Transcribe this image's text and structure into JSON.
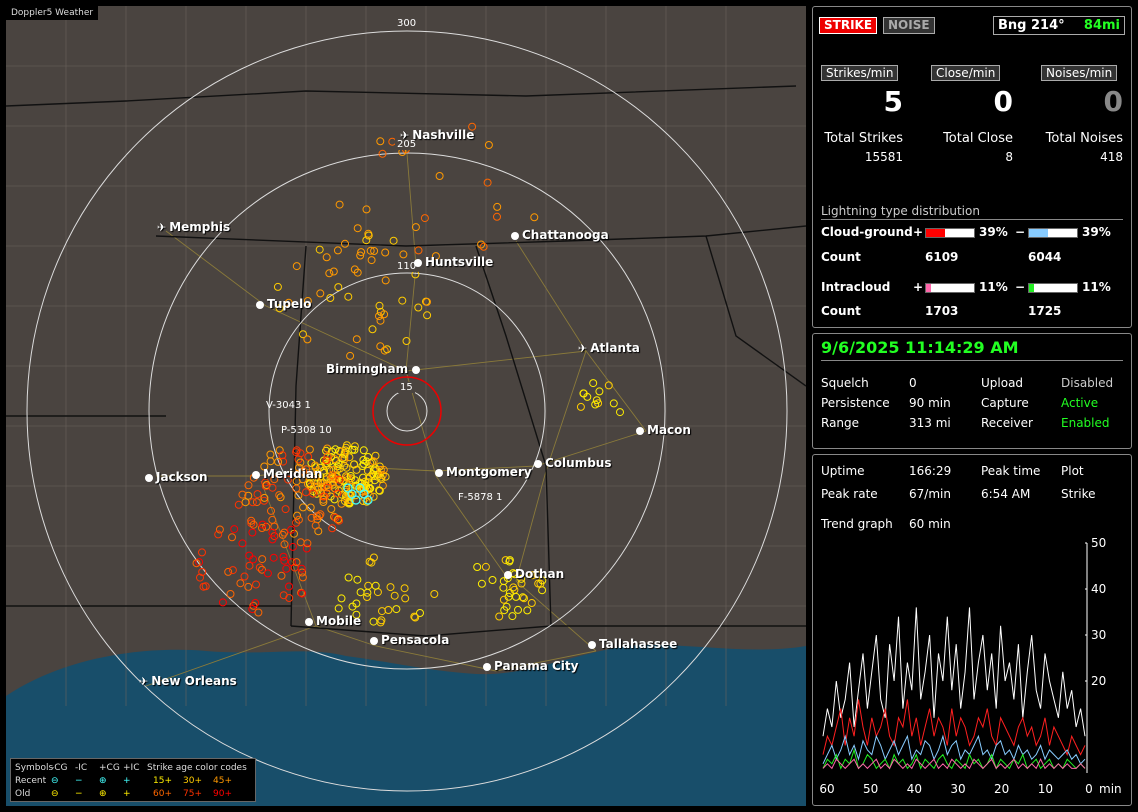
{
  "app_title": "Doppler5 Weather",
  "map": {
    "ring_labels": [
      "300",
      "205",
      "110",
      "15"
    ],
    "cities": [
      {
        "name": "Nashville",
        "type": "airport"
      },
      {
        "name": "Memphis",
        "type": "airport"
      },
      {
        "name": "Chattanooga",
        "type": "city"
      },
      {
        "name": "Huntsville",
        "type": "city"
      },
      {
        "name": "Tupelo",
        "type": "city"
      },
      {
        "name": "Atlanta",
        "type": "airport"
      },
      {
        "name": "Birmingham",
        "type": "city"
      },
      {
        "name": "Macon",
        "type": "city"
      },
      {
        "name": "Jackson",
        "type": "city"
      },
      {
        "name": "Meridian",
        "type": "city"
      },
      {
        "name": "Montgomery",
        "type": "city"
      },
      {
        "name": "Columbus",
        "type": "city"
      },
      {
        "name": "Dothan",
        "type": "city"
      },
      {
        "name": "Mobile",
        "type": "city"
      },
      {
        "name": "Pensacola",
        "type": "city"
      },
      {
        "name": "Tallahassee",
        "type": "city"
      },
      {
        "name": "Panama City",
        "type": "city"
      },
      {
        "name": "New Orleans",
        "type": "airport"
      }
    ],
    "sensor_labels": [
      "V-3043 1",
      "P-5308 10",
      "F-5878 1"
    ]
  },
  "legend": {
    "row1": [
      "Symbols",
      "-CG",
      "-IC",
      "+CG",
      "+IC",
      "Strike age color codes"
    ],
    "row2": [
      "Recent",
      "⊖",
      "−",
      "⊕",
      "+",
      "15+",
      "30+",
      "45+"
    ],
    "row3": [
      "Old",
      "⊖",
      "−",
      "⊕",
      "+",
      "60+",
      "75+",
      "90+"
    ],
    "age_colors": [
      "#ffee00",
      "#ffcc00",
      "#ff9900",
      "#ff6600",
      "#ff3300",
      "#ff0000"
    ]
  },
  "status": {
    "strike_label": "STRIKE",
    "noise_label": "NOISE",
    "bearing": "Bng 214°",
    "distance": "84mi"
  },
  "rates": {
    "strikes_label": "Strikes/min",
    "strikes": "5",
    "close_label": "Close/min",
    "close": "0",
    "noises_label": "Noises/min",
    "noises": "0"
  },
  "totals": {
    "strikes_label": "Total Strikes",
    "strikes": "15581",
    "close_label": "Total Close",
    "close": "8",
    "noises_label": "Total Noises",
    "noises": "418"
  },
  "distribution": {
    "title": "Lightning type distribution",
    "cg_label": "Cloud-ground",
    "ic_label": "Intracloud",
    "count_label": "Count",
    "plus": "+",
    "minus": "−",
    "cg_plus_pct": "39%",
    "cg_minus_pct": "39%",
    "cg_plus_count": "6109",
    "cg_minus_count": "6044",
    "ic_plus_pct": "11%",
    "ic_minus_pct": "11%",
    "ic_plus_count": "1703",
    "ic_minus_count": "1725",
    "cg_plus_fill": 0.39,
    "cg_minus_fill": 0.39,
    "ic_plus_fill": 0.11,
    "ic_minus_fill": 0.11,
    "colors": {
      "cg_plus": "#ff0000",
      "cg_minus": "#88ccff",
      "ic_plus": "#ff66aa",
      "ic_minus": "#22ee22"
    }
  },
  "settings": {
    "datetime": "9/6/2025 11:14:29 AM",
    "squelch_label": "Squelch",
    "squelch": "0",
    "persistence_label": "Persistence",
    "persistence": "90 min",
    "range_label": "Range",
    "range": "313 mi",
    "upload_label": "Upload",
    "upload": "Disabled",
    "capture_label": "Capture",
    "capture": "Active",
    "receiver_label": "Receiver",
    "receiver": "Enabled"
  },
  "stats": {
    "uptime_label": "Uptime",
    "uptime": "166:29",
    "peak_time_label": "Peak time",
    "peak_time": "6:54 AM",
    "plot_label": "Plot",
    "plot": "Strike",
    "peak_rate_label": "Peak rate",
    "peak_rate": "67/min",
    "trend_label": "Trend graph",
    "trend": "60 min"
  },
  "chart_data": {
    "type": "line",
    "x_ticks": [
      "60",
      "50",
      "40",
      "30",
      "20",
      "10",
      "0"
    ],
    "x_unit": "min",
    "y_ticks": [
      "50",
      "40",
      "30",
      "20"
    ],
    "ylim": [
      0,
      50
    ],
    "xlim": [
      60,
      0
    ],
    "series": [
      {
        "color": "#ffffff",
        "values": [
          8,
          14,
          10,
          20,
          12,
          16,
          24,
          10,
          18,
          26,
          14,
          22,
          30,
          16,
          12,
          28,
          20,
          34,
          14,
          24,
          18,
          36,
          16,
          22,
          30,
          12,
          26,
          20,
          34,
          18,
          28,
          14,
          22,
          36,
          16,
          24,
          30,
          18,
          26,
          14,
          32,
          20,
          24,
          16,
          28,
          12,
          22,
          30,
          18,
          14,
          26,
          20,
          16,
          12,
          22,
          14,
          18,
          10,
          14,
          8
        ]
      },
      {
        "color": "#ff2020",
        "values": [
          4,
          8,
          6,
          10,
          14,
          6,
          12,
          8,
          16,
          10,
          6,
          12,
          8,
          10,
          14,
          8,
          6,
          12,
          10,
          16,
          8,
          12,
          6,
          10,
          14,
          8,
          12,
          10,
          6,
          14,
          8,
          12,
          10,
          6,
          8,
          12,
          10,
          14,
          8,
          6,
          12,
          10,
          8,
          6,
          10,
          12,
          8,
          10,
          6,
          8,
          12,
          6,
          10,
          8,
          6,
          4,
          8,
          6,
          4,
          6
        ]
      },
      {
        "color": "#88ccff",
        "values": [
          2,
          4,
          6,
          3,
          5,
          8,
          4,
          6,
          3,
          7,
          5,
          4,
          8,
          6,
          3,
          5,
          7,
          4,
          6,
          8,
          3,
          5,
          4,
          7,
          6,
          3,
          5,
          8,
          4,
          6,
          7,
          3,
          5,
          4,
          6,
          8,
          4,
          5,
          3,
          6,
          7,
          4,
          5,
          3,
          6,
          4,
          5,
          3,
          4,
          6,
          3,
          5,
          4,
          3,
          4,
          5,
          3,
          4,
          2,
          3
        ]
      },
      {
        "color": "#22ee22",
        "values": [
          1,
          3,
          2,
          4,
          1,
          3,
          2,
          5,
          1,
          2,
          4,
          3,
          1,
          2,
          3,
          1,
          4,
          2,
          3,
          1,
          2,
          4,
          1,
          3,
          2,
          1,
          3,
          4,
          2,
          1,
          3,
          2,
          1,
          4,
          2,
          3,
          1,
          2,
          4,
          1,
          3,
          2,
          1,
          3,
          2,
          4,
          1,
          2,
          3,
          1,
          2,
          3,
          1,
          2,
          1,
          3,
          2,
          1,
          2,
          1
        ]
      },
      {
        "color": "#ff66aa",
        "values": [
          1,
          2,
          1,
          3,
          2,
          1,
          2,
          3,
          1,
          2,
          1,
          2,
          3,
          1,
          2,
          1,
          3,
          2,
          1,
          2,
          1,
          3,
          2,
          1,
          2,
          3,
          1,
          2,
          1,
          3,
          2,
          1,
          2,
          1,
          3,
          2,
          1,
          2,
          3,
          1,
          2,
          1,
          2,
          3,
          1,
          2,
          1,
          2,
          1,
          3,
          1,
          2,
          1,
          2,
          1,
          2,
          1,
          1,
          2,
          1
        ]
      }
    ]
  }
}
